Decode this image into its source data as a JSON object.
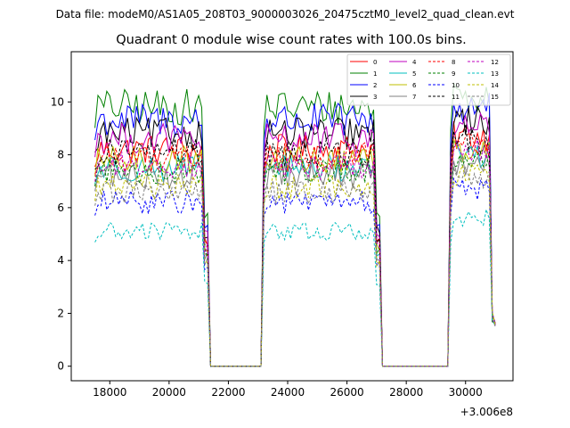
{
  "figure": {
    "header": "Data file: modeM0/AS1A05_208T03_9000003026_20475cztM0_level2_quad_clean.evt"
  },
  "chart_data": {
    "type": "line",
    "title": "Quadrant 0 module wise count rates with 100.0s bins.",
    "xlabel": "",
    "ylabel": "",
    "x_offset_label": "+3.006e8",
    "xlim": [
      16700,
      31600
    ],
    "ylim": [
      -0.55,
      11.9
    ],
    "xticks": [
      18000,
      20000,
      22000,
      24000,
      26000,
      28000,
      30000
    ],
    "xtick_labels": [
      "18000",
      "20000",
      "22000",
      "24000",
      "26000",
      "28000",
      "30000"
    ],
    "yticks": [
      0,
      2,
      4,
      6,
      8,
      10
    ],
    "ytick_labels": [
      "0",
      "2",
      "4",
      "6",
      "8",
      "10"
    ],
    "grid": false,
    "legend_position": "top-right",
    "segments": [
      [
        17500,
        21300
      ],
      [
        23200,
        27100
      ],
      [
        29500,
        31000
      ]
    ],
    "gaps": [
      [
        21400,
        23200
      ],
      [
        27200,
        29500
      ]
    ],
    "series": [
      {
        "name": "0",
        "color": "#ff0000",
        "style": "solid",
        "level": 8.2
      },
      {
        "name": "1",
        "color": "#008000",
        "style": "solid",
        "level": 9.8
      },
      {
        "name": "2",
        "color": "#0000ff",
        "style": "solid",
        "level": 9.3
      },
      {
        "name": "3",
        "color": "#000000",
        "style": "solid",
        "level": 8.8
      },
      {
        "name": "4",
        "color": "#bf00bf",
        "style": "solid",
        "level": 8.6
      },
      {
        "name": "5",
        "color": "#00bfbf",
        "style": "solid",
        "level": 7.5
      },
      {
        "name": "6",
        "color": "#bfbf00",
        "style": "solid",
        "level": 7.8
      },
      {
        "name": "7",
        "color": "#808080",
        "style": "solid",
        "level": 7.2
      },
      {
        "name": "8",
        "color": "#ff0000",
        "style": "dashed",
        "level": 7.9
      },
      {
        "name": "9",
        "color": "#008000",
        "style": "dashed",
        "level": 7.4
      },
      {
        "name": "10",
        "color": "#0000ff",
        "style": "dashed",
        "level": 6.2
      },
      {
        "name": "11",
        "color": "#000000",
        "style": "dashed",
        "level": 8.1
      },
      {
        "name": "12",
        "color": "#bf00bf",
        "style": "dashed",
        "level": 7.6
      },
      {
        "name": "13",
        "color": "#00bfbf",
        "style": "dashed",
        "level": 5.1
      },
      {
        "name": "14",
        "color": "#bfbf00",
        "style": "dashed",
        "level": 6.8
      },
      {
        "name": "15",
        "color": "#808080",
        "style": "dashed",
        "level": 6.6
      }
    ]
  }
}
